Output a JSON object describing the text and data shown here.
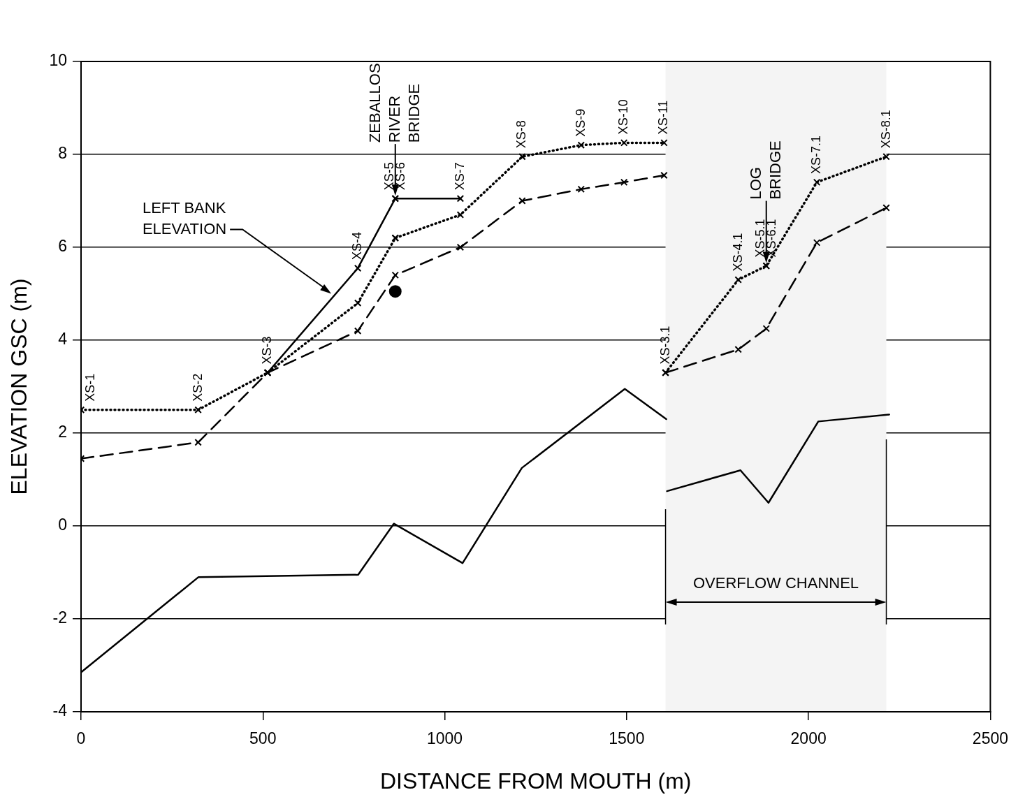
{
  "chart_data": {
    "type": "line",
    "xlabel": "DISTANCE FROM MOUTH (m)",
    "ylabel": "ELEVATION GSC (m)",
    "xlim": [
      0,
      2500
    ],
    "xticks": [
      0,
      500,
      1000,
      1500,
      2000,
      2500
    ],
    "ylim": [
      -4,
      10
    ],
    "yticks": [
      -4,
      -2,
      0,
      2,
      4,
      6,
      8,
      10
    ],
    "grid": "y",
    "legend": false,
    "series": [
      {
        "color": "#000000",
        "line_style": "dotted",
        "marker": "cross",
        "x": [
          0,
          322,
          513,
          761,
          864,
          864,
          1043,
          1213,
          1375,
          1493,
          1603,
          1605,
          1607,
          1807,
          1884,
          1884,
          2023,
          2214
        ],
        "values": [
          2.5,
          2.5,
          3.3,
          4.8,
          6.2,
          6.2,
          6.7,
          7.95,
          8.2,
          8.25,
          8.25,
          null,
          3.3,
          5.3,
          5.6,
          5.6,
          7.4,
          7.95
        ],
        "value_labels": [
          "XS-1",
          "XS-2",
          "XS-3",
          null,
          null,
          null,
          null,
          "XS-8",
          "XS-9",
          "XS-10",
          "XS-11",
          null,
          "XS-3.1",
          "XS-4.1",
          "XS-5.1",
          "XS-6.1",
          "XS-7.1",
          "XS-8.1"
        ]
      },
      {
        "color": "#000000",
        "line_style": "dashed",
        "marker": "cross",
        "x": [
          0,
          322,
          513,
          761,
          864,
          1043,
          1213,
          1375,
          1493,
          1603,
          1605,
          1607,
          1807,
          1884,
          2023,
          2214
        ],
        "values": [
          1.45,
          1.8,
          3.3,
          4.2,
          5.4,
          6.0,
          7.0,
          7.25,
          7.4,
          7.55,
          null,
          3.3,
          3.8,
          4.25,
          6.1,
          6.85
        ]
      },
      {
        "color": "#000000",
        "line_style": "solid",
        "marker": "cross",
        "x": [
          513,
          761,
          864,
          864,
          1043
        ],
        "values": [
          3.3,
          5.55,
          7.05,
          7.05,
          7.05
        ],
        "value_labels": [
          null,
          "XS-4",
          "XS-5",
          "XS-6",
          "XS-7"
        ]
      },
      {
        "color": "#000000",
        "line_style": "solid",
        "marker": "none",
        "x": [
          0,
          323,
          762,
          860,
          1049,
          1212,
          1495,
          1609,
          1610,
          1611,
          1813,
          1890,
          2027,
          2222
        ],
        "values": [
          -3.15,
          -1.1,
          -1.05,
          0.05,
          -0.8,
          1.25,
          2.95,
          2.3,
          null,
          0.75,
          1.2,
          0.5,
          2.25,
          2.4
        ]
      },
      {
        "type": "scatter",
        "color": "#000000",
        "marker": "circle",
        "x": [
          864
        ],
        "values": [
          5.05
        ]
      }
    ],
    "annotations": [
      {
        "text": "ZEBALLOS RIVER BRIDGE",
        "x": 864,
        "y": 7.05
      },
      {
        "text": "LOG BRIDGE",
        "x": 1884,
        "y": 5.6
      },
      {
        "text": "LEFT BANK ELEVATION",
        "x": 688,
        "y": 5.0
      }
    ],
    "bands": [
      {
        "axis": "x",
        "from": 1607,
        "to": 2214,
        "label": "OVERFLOW CHANNEL",
        "color": "#f4f4f4"
      }
    ]
  }
}
